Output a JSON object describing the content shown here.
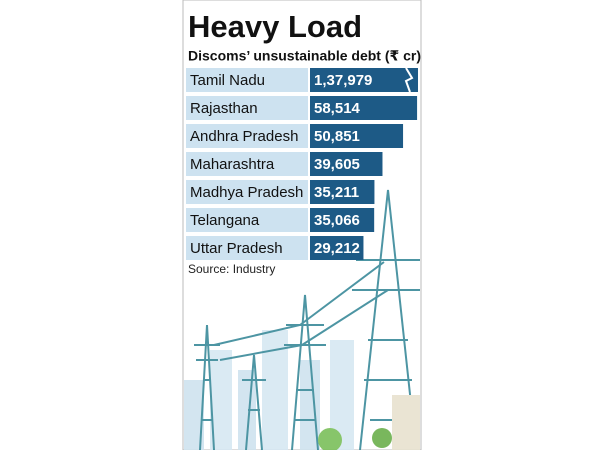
{
  "chart_data": {
    "type": "bar",
    "orientation": "horizontal",
    "title": "Heavy Load",
    "subtitle": "Discoms’ unsustainable debt (₹ cr)",
    "categories": [
      "Tamil Nadu",
      "Rajasthan",
      "Andhra Pradesh",
      "Maharashtra",
      "Madhya Pradesh",
      "Telangana",
      "Uttar Pradesh"
    ],
    "values": [
      137979,
      58514,
      50851,
      39605,
      35211,
      35066,
      29212
    ],
    "value_labels": [
      "1,37,979",
      "58,514",
      "50,851",
      "39,605",
      "35,211",
      "35,066",
      "29,212"
    ],
    "color": "#1d5a86",
    "source": "Source: Industry"
  }
}
